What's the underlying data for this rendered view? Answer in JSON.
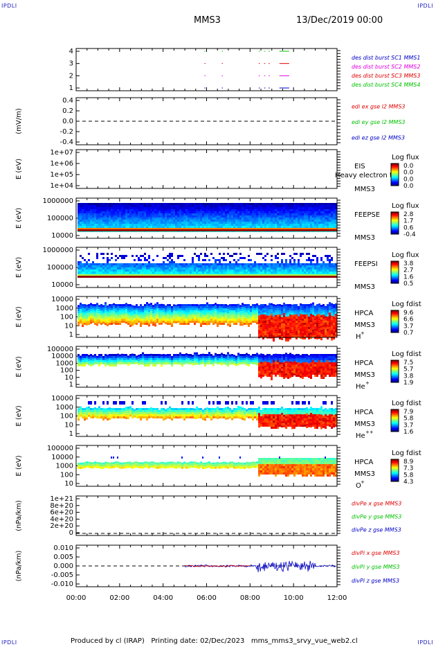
{
  "corner_labels": {
    "tl": "IPDLI",
    "tr": "IPDLI",
    "bl": "IPDLI",
    "br": "IPDLI"
  },
  "header": {
    "spacecraft": "MMS3",
    "date": "13/Dec/2019 00:00"
  },
  "footer": {
    "text": "Produced by cl (IRAP)   Printing date: 02/Dec/2023   mms_mms3_srvy_vue_web2.cl"
  },
  "colors": {
    "red": "#e00000",
    "magenta": "#e000e0",
    "blue": "#0000c8",
    "green": "#00c000",
    "axis": "#000000"
  },
  "time_axis": {
    "range_hours": [
      0,
      12
    ],
    "ticks": [
      "00:00",
      "02:00",
      "04:00",
      "06:00",
      "08:00",
      "10:00",
      "12:00"
    ]
  },
  "chart_data": [
    {
      "id": "burst",
      "type": "line",
      "xlabel": "",
      "ylabel": "",
      "yticks": [
        "4",
        "3",
        "2",
        "1"
      ],
      "ylim": [
        0.5,
        4.5
      ],
      "series": [
        {
          "name": "des dist burst SC1 MMS1",
          "color": "#0000c8",
          "y": 1,
          "intervals": [
            [
              5.9,
              5.95
            ],
            [
              6.7,
              6.75
            ],
            [
              8.4,
              8.45
            ],
            [
              8.65,
              8.7
            ],
            [
              8.85,
              8.9
            ],
            [
              9.35,
              9.8
            ]
          ]
        },
        {
          "name": "des dist burst SC2 MMS2",
          "color": "#e000e0",
          "y": 2,
          "intervals": [
            [
              5.9,
              5.95
            ],
            [
              6.7,
              6.75
            ],
            [
              8.4,
              8.45
            ],
            [
              8.65,
              8.7
            ],
            [
              8.85,
              8.9
            ],
            [
              9.35,
              9.8
            ]
          ]
        },
        {
          "name": "des dist burst SC3 MMS3",
          "color": "#e00000",
          "y": 3,
          "intervals": [
            [
              5.9,
              5.95
            ],
            [
              6.7,
              6.75
            ],
            [
              8.4,
              8.45
            ],
            [
              8.65,
              8.7
            ],
            [
              8.85,
              8.9
            ],
            [
              9.35,
              9.8
            ]
          ]
        },
        {
          "name": "des dist burst SC4 MMS4",
          "color": "#00c000",
          "y": 4,
          "intervals": [
            [
              5.9,
              5.95
            ],
            [
              6.7,
              6.75
            ],
            [
              8.4,
              8.45
            ],
            [
              8.65,
              8.7
            ],
            [
              8.85,
              8.9
            ],
            [
              9.35,
              9.8
            ]
          ]
        }
      ]
    },
    {
      "id": "edi",
      "type": "line",
      "ylabel": "(mV/m)",
      "yticks": [
        "0.4",
        "0.2",
        "0.0",
        "-0.2",
        "-0.4"
      ],
      "ylim": [
        -0.5,
        0.5
      ],
      "series": [
        {
          "name": "edi ex gse l2 MMS3",
          "color": "#e00000"
        },
        {
          "name": "edi ey gse l2 MMS3",
          "color": "#00c000"
        },
        {
          "name": "edi ez gse l2 MMS3",
          "color": "#0000c8"
        }
      ],
      "zero_line": true
    },
    {
      "id": "eis",
      "type": "heatmap",
      "ylabel": "E (eV)",
      "yticks": [
        "1e+07",
        "1e+06",
        "1e+05",
        "1e+04"
      ],
      "instrument": "EIS",
      "subtitle": "Heavy electron to",
      "spacecraft": "MMS3",
      "colorbar": {
        "title": "Log flux",
        "ticks": [
          "0.0",
          "0.0",
          "0.0",
          "0.0"
        ]
      }
    },
    {
      "id": "feepse",
      "type": "heatmap",
      "ylabel": "E (eV)",
      "yticks": [
        "1000000",
        "100000",
        "10000"
      ],
      "instrument": "FEEPSE",
      "spacecraft": "MMS3",
      "colorbar": {
        "title": "Log flux",
        "ticks": [
          "2.8",
          "1.7",
          "0.6",
          "-0.4"
        ]
      }
    },
    {
      "id": "feepsi",
      "type": "heatmap",
      "ylabel": "E (eV)",
      "yticks": [
        "1000000",
        "100000",
        "10000"
      ],
      "instrument": "FEEPSI",
      "spacecraft": "MMS3",
      "colorbar": {
        "title": "Log flux",
        "ticks": [
          "3.8",
          "2.7",
          "1.6",
          "0.5"
        ]
      }
    },
    {
      "id": "hpca_h",
      "type": "heatmap",
      "ylabel": "E (eV)",
      "yticks": [
        "10000",
        "1000",
        "100",
        "10",
        "1"
      ],
      "instrument": "HPCA",
      "spacecraft": "MMS3",
      "species": "H",
      "charge": "+",
      "colorbar": {
        "title": "Log fdist",
        "ticks": [
          "9.6",
          "6.6",
          "3.7",
          "0.7"
        ]
      }
    },
    {
      "id": "hpca_he",
      "type": "heatmap",
      "ylabel": "E (eV)",
      "yticks": [
        "100000",
        "10000",
        "1000",
        "100",
        "10",
        "1"
      ],
      "instrument": "HPCA",
      "spacecraft": "MMS3",
      "species": "He",
      "charge": "+",
      "colorbar": {
        "title": "Log fdist",
        "ticks": [
          "7.5",
          "5.7",
          "3.8",
          "1.9"
        ]
      }
    },
    {
      "id": "hpca_he2",
      "type": "heatmap",
      "ylabel": "E (eV)",
      "yticks": [
        "10000",
        "1000",
        "100",
        "10",
        "1"
      ],
      "instrument": "HPCA",
      "spacecraft": "MMS3",
      "species": "He",
      "charge": "++",
      "colorbar": {
        "title": "Log fdist",
        "ticks": [
          "7.9",
          "5.8",
          "3.7",
          "1.6"
        ]
      }
    },
    {
      "id": "hpca_o",
      "type": "heatmap",
      "ylabel": "E (eV)",
      "yticks": [
        "100000",
        "10000",
        "1000",
        "100",
        "10"
      ],
      "instrument": "HPCA",
      "spacecraft": "MMS3",
      "species": "O",
      "charge": "+",
      "colorbar": {
        "title": "Log fdist",
        "ticks": [
          "8.9",
          "7.3",
          "5.8",
          "4.3"
        ]
      }
    },
    {
      "id": "dpe",
      "type": "line",
      "ylabel": "(nPa/km)",
      "yticks": [
        "1e+21",
        "8e+20",
        "6e+20",
        "4e+20",
        "2e+20",
        "0"
      ],
      "ylim": [
        -1e+19,
        1.05e+21
      ],
      "series": [
        {
          "name": "divPe x gse MMS3",
          "color": "#e00000"
        },
        {
          "name": "divPe y gse MMS3",
          "color": "#00c000"
        },
        {
          "name": "divPe z gse MMS3",
          "color": "#0000c8"
        }
      ],
      "zero_line": true
    },
    {
      "id": "dpi",
      "type": "line",
      "ylabel": "(nPa/km)",
      "yticks": [
        "0.010",
        "0.005",
        "0.000",
        "-0.005",
        "-0.010"
      ],
      "ylim": [
        -0.012,
        0.012
      ],
      "series": [
        {
          "name": "divPi x gse MMS3",
          "color": "#e00000"
        },
        {
          "name": "divPi y gse MMS3",
          "color": "#00c000"
        },
        {
          "name": "divPi z gse MMS3",
          "color": "#0000c8"
        }
      ],
      "zero_line": true,
      "data_start_hours": 5.0
    }
  ]
}
